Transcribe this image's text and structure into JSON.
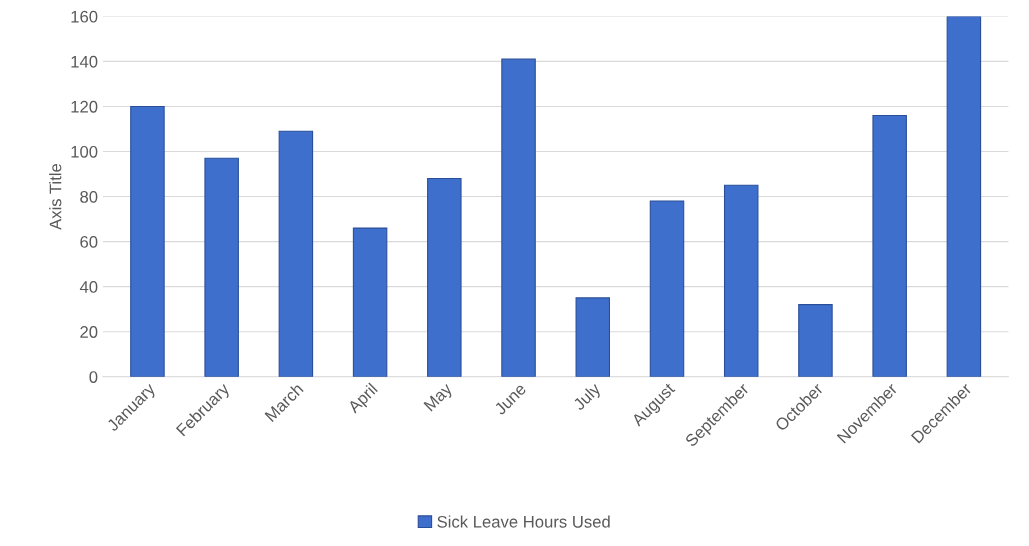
{
  "chart_data": {
    "type": "bar",
    "ylabel": "Axis Title",
    "categories": [
      "January",
      "February",
      "March",
      "April",
      "May",
      "June",
      "July",
      "August",
      "September",
      "October",
      "November",
      "December"
    ],
    "series": [
      {
        "name": "Sick Leave Hours Used",
        "color": "#3f6fcc",
        "values": [
          120,
          97,
          109,
          66,
          88,
          141,
          35,
          78,
          85,
          32,
          116,
          160
        ]
      }
    ],
    "ylim": [
      0,
      160
    ],
    "yticks": [
      0,
      20,
      40,
      60,
      80,
      100,
      120,
      140,
      160
    ],
    "grid": "y",
    "legend": "bottom"
  }
}
